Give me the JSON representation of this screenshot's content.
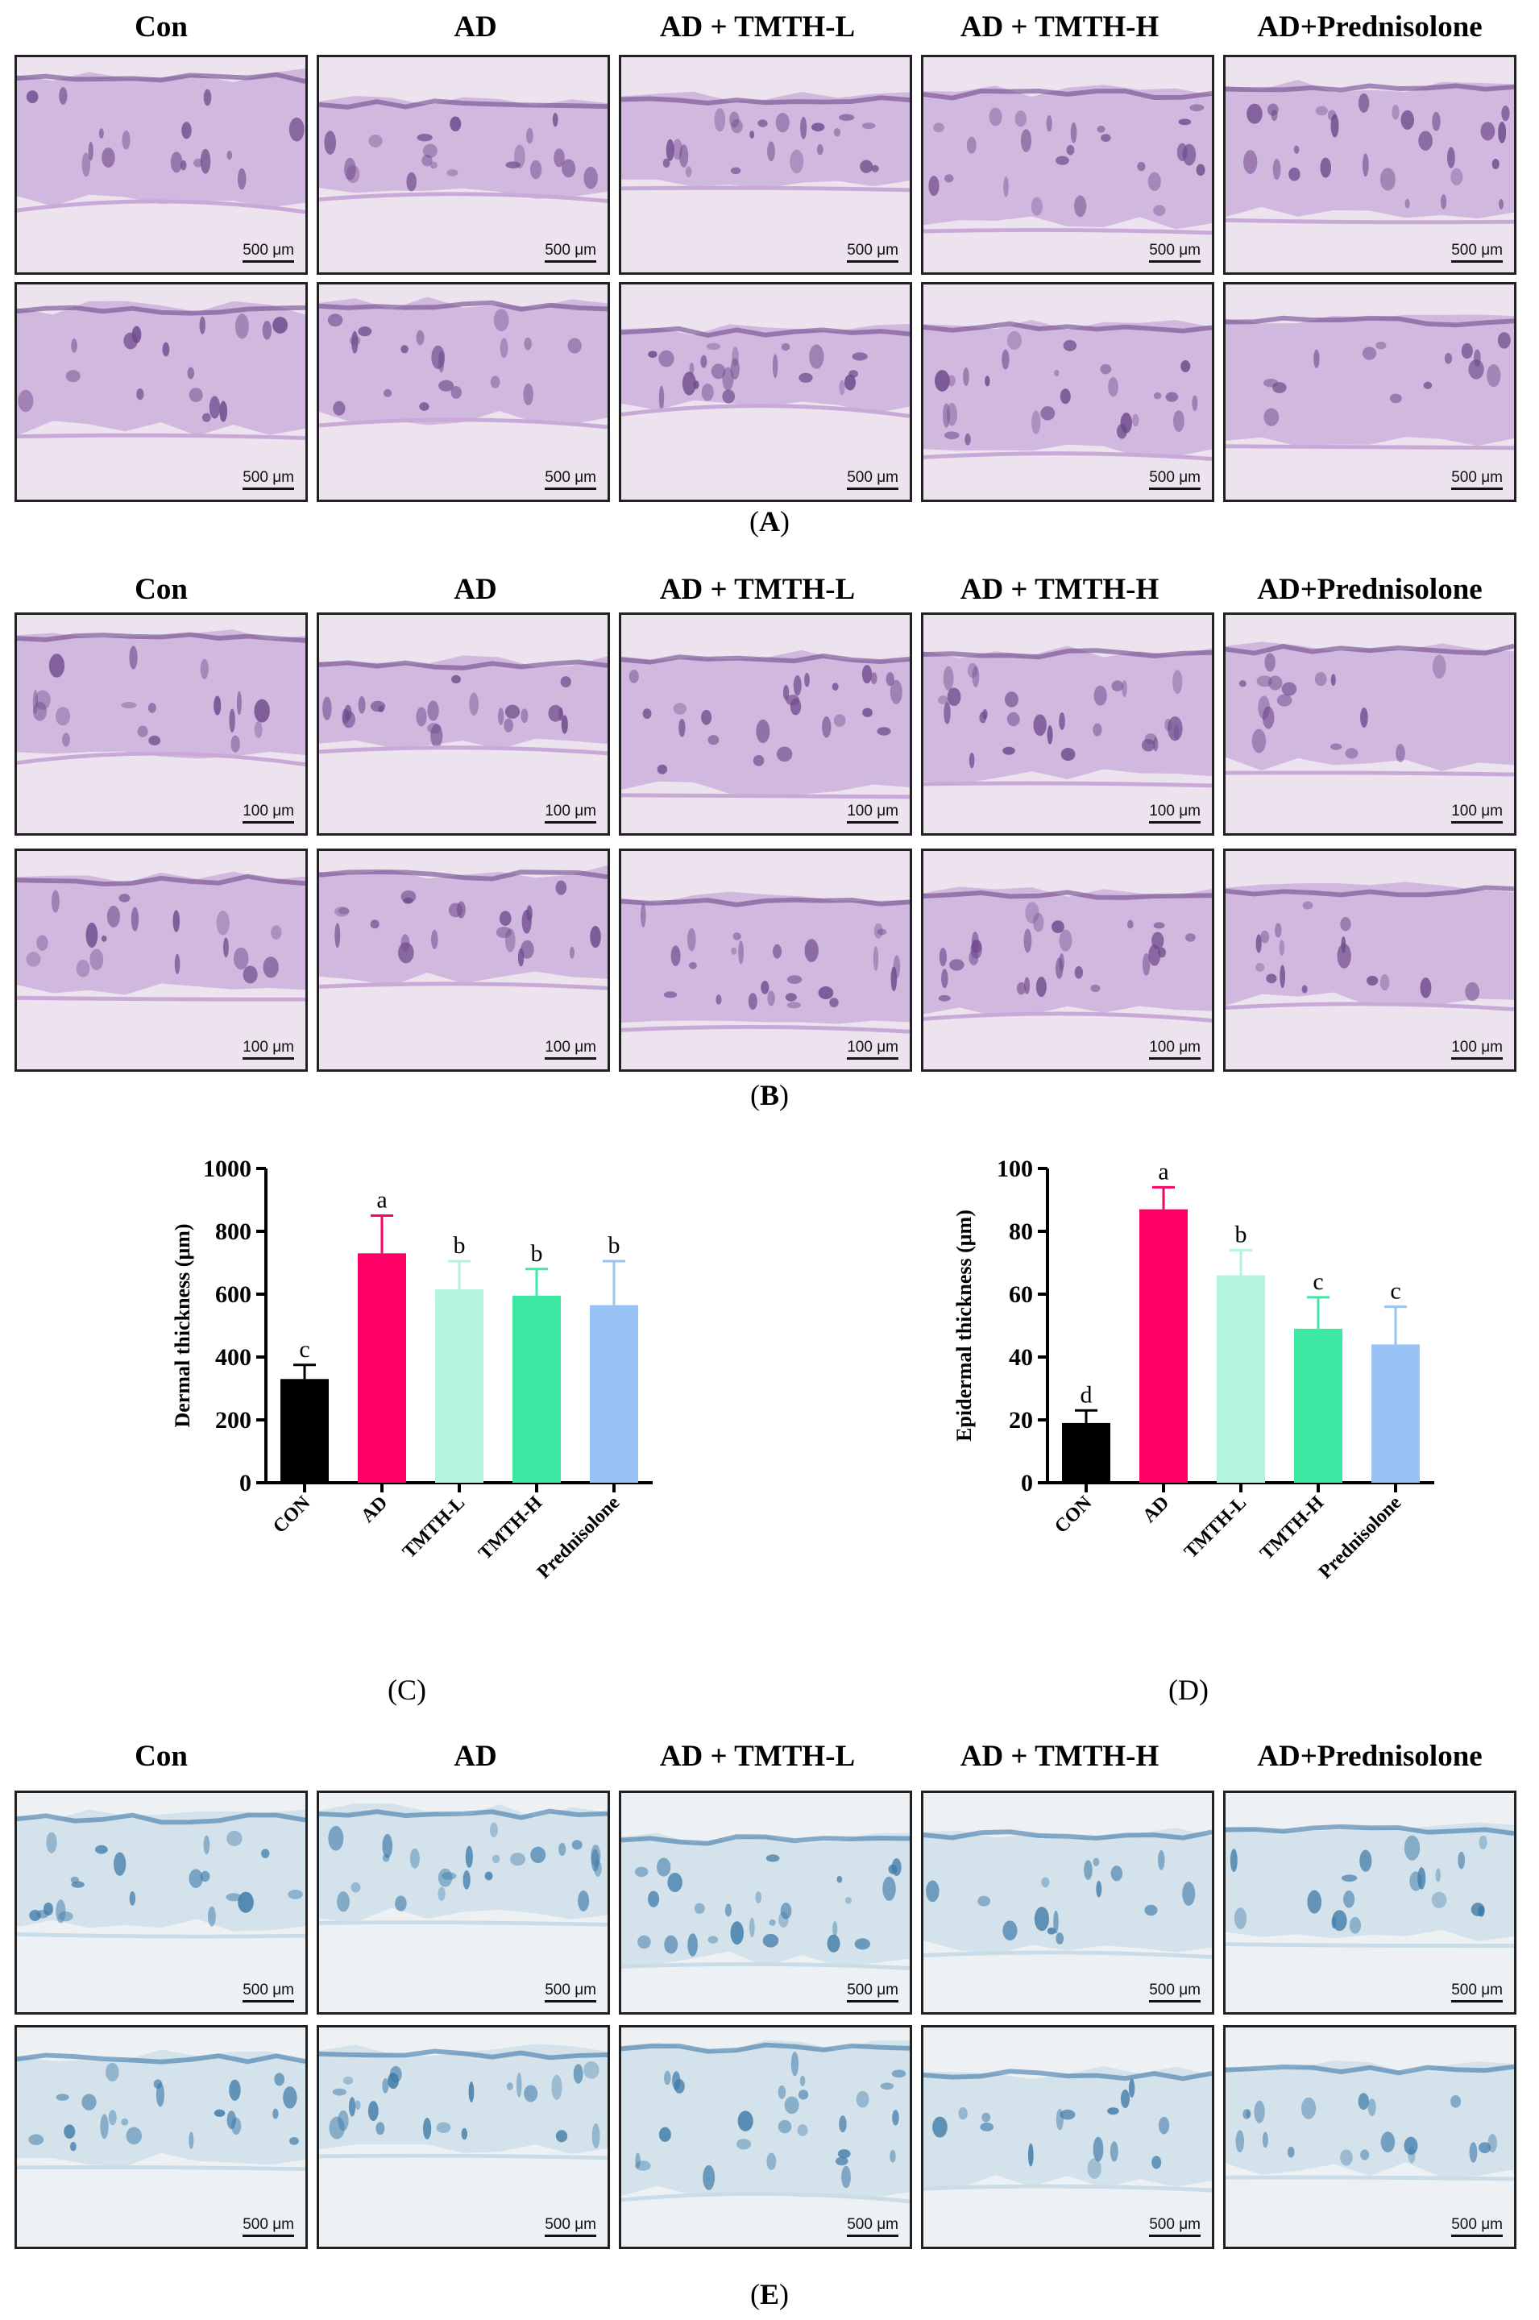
{
  "groups": [
    "Con",
    "AD",
    "AD + TMTH-L",
    "AD + TMTH-H",
    "AD+Prednisolone"
  ],
  "scale_500": "500 μm",
  "scale_100": "100 μm",
  "captions": {
    "A": "A",
    "B": "B",
    "C": "C",
    "D": "D",
    "E": "E"
  },
  "colors": {
    "he_bg": "#ece3ef",
    "he_tissue": "#c8a9d8",
    "he_dark": "#6e4a8c",
    "ab_bg": "#eef1f4",
    "ab_tissue": "#c9dce8",
    "ab_dark": "#3f7aa8",
    "bar_con": "#000000",
    "bar_ad": "#ff0066",
    "bar_l": "#b3f5dc",
    "bar_h": "#3de8a3",
    "bar_p": "#99c2f5"
  },
  "chart_data": [
    {
      "type": "bar",
      "panel": "C",
      "categories": [
        "CON",
        "AD",
        "TMTH-L",
        "TMTH-H",
        "Prednisolone"
      ],
      "values": [
        330,
        730,
        615,
        595,
        565
      ],
      "errors": [
        45,
        120,
        90,
        85,
        140
      ],
      "letters": [
        "c",
        "a",
        "b",
        "b",
        "b"
      ],
      "ylabel": "Dermal thickness (μm)",
      "ylim": [
        0,
        1000
      ],
      "yticks": [
        0,
        200,
        400,
        600,
        800,
        1000
      ],
      "colors": [
        "#000000",
        "#ff0066",
        "#b3f5dc",
        "#3de8a3",
        "#99c2f5"
      ]
    },
    {
      "type": "bar",
      "panel": "D",
      "categories": [
        "CON",
        "AD",
        "TMTH-L",
        "TMTH-H",
        "Prednisolone"
      ],
      "values": [
        19,
        87,
        66,
        49,
        44
      ],
      "errors": [
        4,
        7,
        8,
        10,
        12
      ],
      "letters": [
        "d",
        "a",
        "b",
        "c",
        "c"
      ],
      "ylabel": "Epidermal thickness (μm)",
      "ylim": [
        0,
        100
      ],
      "yticks": [
        0,
        20,
        40,
        60,
        80,
        100
      ],
      "colors": [
        "#000000",
        "#ff0066",
        "#b3f5dc",
        "#3de8a3",
        "#99c2f5"
      ]
    }
  ]
}
